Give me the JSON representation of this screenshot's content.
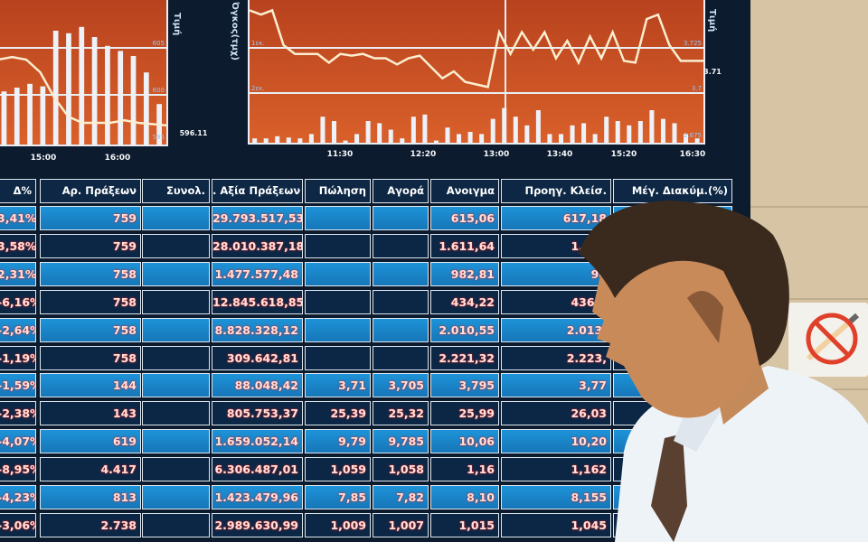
{
  "left_chart": {
    "axis_label": "Τιμή",
    "scale_labels": [
      "605",
      "600",
      "595"
    ],
    "last_value": "596.11",
    "time_ticks": [
      "15:00",
      "16:00"
    ],
    "bars": [
      0.42,
      0.45,
      0.48,
      0.46,
      0.9,
      0.88,
      0.93,
      0.85,
      0.78,
      0.74,
      0.7,
      0.57,
      0.32
    ],
    "line": [
      0.6,
      0.62,
      0.6,
      0.5,
      0.3,
      0.15,
      0.1,
      0.1,
      0.1,
      0.12,
      0.1,
      0.09,
      0.08
    ]
  },
  "right_chart": {
    "axis_label_left": "Όγκος(τμχ)",
    "axis_label_right": "Τιμή",
    "left_labels": [
      "1εκ.",
      "2εκ."
    ],
    "right_labels": [
      "3.725",
      "3.7",
      "2.675"
    ],
    "last_value": "3.71",
    "time_ticks": [
      "11:30",
      "12:20",
      "13:00",
      "13:40",
      "15:20",
      "16:30"
    ],
    "line": [
      1.0,
      0.95,
      1.0,
      0.6,
      0.5,
      0.5,
      0.5,
      0.4,
      0.5,
      0.48,
      0.5,
      0.45,
      0.45,
      0.38,
      0.45,
      0.48,
      0.35,
      0.22,
      0.3,
      0.18,
      0.15,
      0.12,
      0.75,
      0.5,
      0.75,
      0.55,
      0.75,
      0.45,
      0.65,
      0.4,
      0.7,
      0.45,
      0.75,
      0.42,
      0.4,
      0.9,
      0.95,
      0.6,
      0.42,
      0.42,
      0.42
    ],
    "bars": [
      0.1,
      0.1,
      0.15,
      0.12,
      0.1,
      0.2,
      0.6,
      0.5,
      0.05,
      0.2,
      0.5,
      0.45,
      0.3,
      0.1,
      0.6,
      0.65,
      0.05,
      0.35,
      0.2,
      0.25,
      0.2,
      0.55,
      0.8,
      0.6,
      0.4,
      0.75,
      0.2,
      0.2,
      0.4,
      0.45,
      0.2,
      0.6,
      0.5,
      0.4,
      0.5,
      0.75,
      0.55,
      0.45,
      0.2,
      0.1
    ]
  },
  "table": {
    "headers": [
      "Δ%",
      "Αρ. Πράξεων",
      "Συνολ.",
      ". Αξία Πράξεων",
      "Πώληση",
      "Αγορά",
      "Ανοιγμα",
      "Προηγ. Κλείσ.",
      "Μέγ. Διακύμ.(%)"
    ],
    "rows": [
      [
        "3,41%",
        "759",
        "",
        "29.793.517,53",
        "",
        "",
        "615,06",
        "617,18",
        ""
      ],
      [
        "3,58%",
        "759",
        "",
        "28.010.387,18",
        "",
        "",
        "1.611,64",
        "1.617",
        ""
      ],
      [
        "2,31%",
        "758",
        "",
        "1.477.577,48",
        "",
        "",
        "982,81",
        "98",
        ""
      ],
      [
        "-6,16%",
        "758",
        "",
        "12.845.618,85",
        "",
        "",
        "434,22",
        "436,7",
        ""
      ],
      [
        "-2,64%",
        "758",
        "",
        "8.828.328,12",
        "",
        "",
        "2.010,55",
        "2.013,",
        ""
      ],
      [
        "-1,19%",
        "758",
        "",
        "309.642,81",
        "",
        "",
        "2.221,32",
        "2.223,",
        ""
      ],
      [
        "-1,59%",
        "144",
        "",
        "88.048,42",
        "3,71",
        "3,705",
        "3,795",
        "3,77",
        ""
      ],
      [
        "-2,38%",
        "143",
        "",
        "805.753,37",
        "25,39",
        "25,32",
        "25,99",
        "26,03",
        ""
      ],
      [
        "-4,07%",
        "619",
        "",
        "1.659.052,14",
        "9,79",
        "9,785",
        "10,06",
        "10,20",
        ""
      ],
      [
        "-8,95%",
        "4.417",
        "",
        "6.306.487,01",
        "1,059",
        "1,058",
        "1,16",
        "1,162",
        ""
      ],
      [
        "-4,23%",
        "813",
        "",
        "1.423.479,96",
        "7,85",
        "7,82",
        "8,10",
        "8,155",
        ""
      ],
      [
        "-3,06%",
        "2.738",
        "",
        "2.989.630,99",
        "1,009",
        "1,007",
        "1,015",
        "1,045",
        ""
      ]
    ]
  },
  "colors": {
    "panel": "#c94f23",
    "light_cell": "#1a85c8",
    "dark_cell": "#0c2746",
    "wall": "#d6c4a4"
  }
}
